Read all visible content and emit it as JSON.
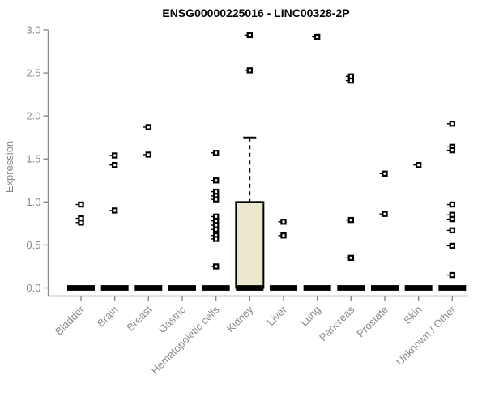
{
  "figure": {
    "title": "ENSG00000225016 - LINC00328-2P"
  },
  "chart_data": {
    "type": "boxplot",
    "title": "ENSG00000225016 - LINC00328-2P",
    "xlabel": "",
    "ylabel": "Expression",
    "ylim": [
      0.0,
      3.0
    ],
    "yticks": [
      0.0,
      0.5,
      1.0,
      1.5,
      2.0,
      2.5,
      3.0
    ],
    "grid": false,
    "legend": false,
    "categories": [
      "Bladder",
      "Brain",
      "Breast",
      "Gastric",
      "Hematopoietic cells",
      "Kidney",
      "Liver",
      "Lung",
      "Pancreas",
      "Prostate",
      "Skin",
      "Unknown / Other"
    ],
    "groups": [
      {
        "category": "Bladder",
        "median": 0.0,
        "points": [
          0.97,
          0.81,
          0.76
        ]
      },
      {
        "category": "Brain",
        "median": 0.0,
        "points": [
          1.54,
          1.43,
          0.9
        ]
      },
      {
        "category": "Breast",
        "median": 0.0,
        "points": [
          1.87,
          1.55
        ]
      },
      {
        "category": "Gastric",
        "median": 0.0,
        "points": []
      },
      {
        "category": "Hematopoietic cells",
        "median": 0.0,
        "points": [
          1.57,
          1.25,
          1.12,
          1.07,
          1.03,
          0.83,
          0.78,
          0.73,
          0.68,
          0.61,
          0.57,
          0.25
        ]
      },
      {
        "category": "Kidney",
        "median": 0.0,
        "box": {
          "q1": 0.0,
          "q3": 1.0,
          "whisker_high": 1.75
        },
        "points": [
          2.94,
          2.53
        ]
      },
      {
        "category": "Liver",
        "median": 0.0,
        "points": [
          0.77,
          0.61
        ]
      },
      {
        "category": "Lung",
        "median": 0.0,
        "points": [
          2.92
        ]
      },
      {
        "category": "Pancreas",
        "median": 0.0,
        "points": [
          2.46,
          2.41,
          0.79,
          0.35
        ]
      },
      {
        "category": "Prostate",
        "median": 0.0,
        "points": [
          1.33,
          0.86
        ]
      },
      {
        "category": "Skin",
        "median": 0.0,
        "points": [
          1.43
        ]
      },
      {
        "category": "Unknown / Other",
        "median": 0.0,
        "points": [
          1.91,
          1.64,
          1.6,
          0.97,
          0.85,
          0.8,
          0.67,
          0.49,
          0.15
        ]
      }
    ],
    "colors": {
      "box_fill": "#ece8cd",
      "box_stroke": "#000000",
      "median": "#000000",
      "point": "#000000",
      "point_fill": "#ffffff",
      "axis": "#8a8a8a",
      "tick_label": "#8a8a8a",
      "title": "#000000",
      "background": "#ffffff"
    }
  }
}
